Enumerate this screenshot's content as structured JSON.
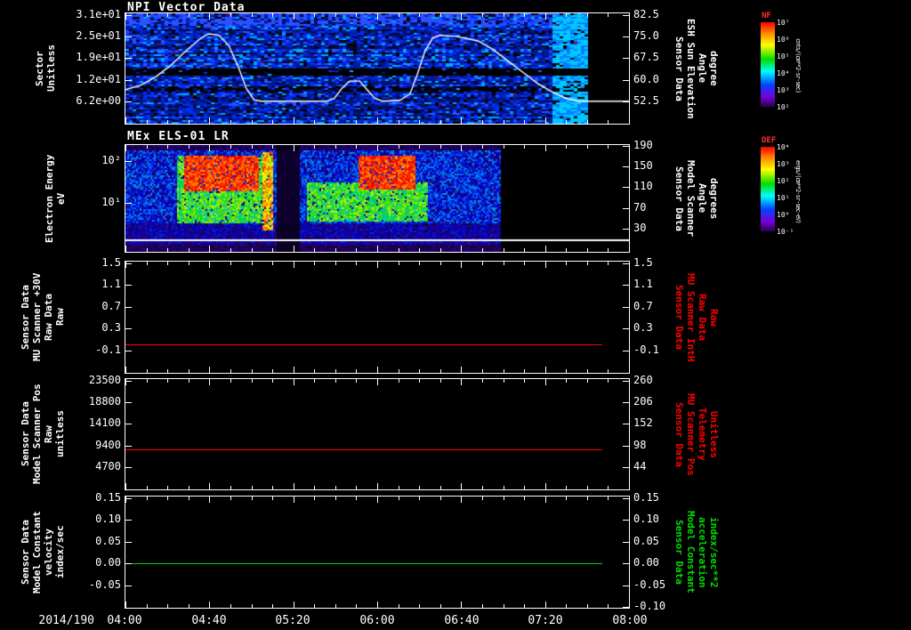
{
  "x_axis": {
    "date_label": "2014/190",
    "tick_labels": [
      "04:00",
      "04:40",
      "05:20",
      "06:00",
      "06:40",
      "07:20",
      "08:00"
    ],
    "time_range": [
      "2014/190 04:00",
      "2014/190 08:00"
    ]
  },
  "chart_data": [
    {
      "type": "heatmap",
      "title": "NPI Vector Data",
      "ylabel_lines": [
        "Sector",
        "Unitless"
      ],
      "yticks_left": [
        "3.1e+01",
        "2.5e+01",
        "1.9e+01",
        "1.2e+01",
        "6.2e+00"
      ],
      "yticks_right": [
        "82.5",
        "75.0",
        "67.5",
        "60.0",
        "52.5"
      ],
      "right_label_lines": [
        "Sensor Data",
        "ESH Sun Elevation",
        "Angle",
        "degree"
      ],
      "right_label_color": "#ffffff",
      "colorbar": {
        "title": "NF",
        "ticks": [
          "10⁷",
          "10⁶",
          "10⁵",
          "10⁴",
          "10³",
          "10²"
        ],
        "units": "cnts/(cm**2-sr-sec)"
      },
      "overlay_line": {
        "name": "ESH Sun Elevation Angle (degree)",
        "color": "#ffffff",
        "points": [
          [
            0,
            56.5
          ],
          [
            0.03,
            58
          ],
          [
            0.06,
            61
          ],
          [
            0.09,
            65
          ],
          [
            0.12,
            70
          ],
          [
            0.15,
            74.5
          ],
          [
            0.165,
            76
          ],
          [
            0.185,
            75.5
          ],
          [
            0.205,
            72
          ],
          [
            0.225,
            64
          ],
          [
            0.24,
            57
          ],
          [
            0.255,
            53
          ],
          [
            0.27,
            52.5
          ],
          [
            0.4,
            52.5
          ],
          [
            0.415,
            53.5
          ],
          [
            0.43,
            57
          ],
          [
            0.445,
            59.5
          ],
          [
            0.465,
            59.5
          ],
          [
            0.48,
            56.5
          ],
          [
            0.495,
            53.5
          ],
          [
            0.51,
            52.5
          ],
          [
            0.545,
            52.8
          ],
          [
            0.565,
            55
          ],
          [
            0.58,
            62
          ],
          [
            0.595,
            70
          ],
          [
            0.61,
            74.5
          ],
          [
            0.625,
            75.5
          ],
          [
            0.66,
            75
          ],
          [
            0.7,
            73.5
          ],
          [
            0.73,
            70.5
          ],
          [
            0.76,
            66.5
          ],
          [
            0.79,
            62.5
          ],
          [
            0.82,
            58.5
          ],
          [
            0.85,
            55.5
          ],
          [
            0.875,
            53.5
          ],
          [
            0.9,
            52.5
          ],
          [
            1,
            52.5
          ]
        ]
      },
      "heatmap_features": {
        "data_end_frac": 0.915,
        "black_bands": [
          [
            0.484,
            0.563,
            0.92
          ],
          [
            0.659,
            0.706,
            0.55
          ]
        ],
        "bright_top": [
          0,
          0.1
        ],
        "bright_column": [
          0.845,
          0.912
        ]
      }
    },
    {
      "type": "heatmap",
      "title": "MEx ELS-01 LR",
      "ylabel_lines": [
        "Electron Energy",
        "eV"
      ],
      "yticks_left": [
        "10²",
        "10¹"
      ],
      "yticks_right": [
        "190",
        "150",
        "110",
        "70",
        "30"
      ],
      "right_label_lines": [
        "Sensor Data",
        "Model Scanner",
        "Angle",
        "degrees"
      ],
      "right_label_color": "#ffffff",
      "colorbar": {
        "title": "DEF",
        "ticks": [
          "10⁴",
          "10³",
          "10²",
          "10¹",
          "10⁰",
          "10⁻¹"
        ],
        "units": "ergs/(cm**2-sr-sec-eV)"
      },
      "heatmap_features": {
        "data_end_frac": 0.743,
        "hot_regions": [
          {
            "x": [
              0.115,
              0.265
            ],
            "y": [
              0.1,
              0.42
            ]
          },
          {
            "x": [
              0.46,
              0.575
            ],
            "y": [
              0.1,
              0.4
            ]
          }
        ],
        "warm_regions": [
          {
            "x": [
              0.1,
              0.28
            ],
            "y": [
              0.1,
              0.72
            ]
          },
          {
            "x": [
              0.36,
              0.6
            ],
            "y": [
              0.35,
              0.7
            ]
          }
        ],
        "streaks": [
          {
            "x": [
              0.272,
              0.292
            ],
            "strength": 0.62
          }
        ],
        "gap_x": [
          0.298,
          0.345
        ],
        "white_line_y": 0.885
      }
    },
    {
      "type": "line",
      "ylabel_lines": [
        "Sensor Data",
        "MU Scanner +30V",
        "Raw Data",
        "Raw"
      ],
      "yticks_left": [
        "1.5",
        "1.1",
        "0.7",
        "0.3",
        "-0.1"
      ],
      "yticks_right": [
        "1.5",
        "1.1",
        "0.7",
        "0.3",
        "-0.1"
      ],
      "right_label_lines": [
        "Sensor Data",
        "MU Scanner IntH",
        "Raw Data",
        "Raw"
      ],
      "right_label_color": "#ff0000",
      "series": [
        {
          "name": "MU Scanner +30V Raw Data",
          "color": "#ff0000",
          "constant_value": 0.0,
          "x_extent": [
            0,
            0.947
          ]
        }
      ]
    },
    {
      "type": "line",
      "ylabel_lines": [
        "Sensor Data",
        "Model Scanner Pos",
        "Raw",
        "unitless"
      ],
      "yticks_left": [
        "23500",
        "18800",
        "14100",
        "9400",
        "4700"
      ],
      "yticks_right": [
        "260",
        "206",
        "152",
        "98",
        "44"
      ],
      "right_label_lines": [
        "Sensor Data",
        "MU Scanner Pos",
        "Telemetry",
        "Unitless"
      ],
      "right_label_color": "#ff0000",
      "series": [
        {
          "name": "Model Scanner Pos Raw",
          "color": "#ff0000",
          "constant_value": 8500,
          "x_extent": [
            0,
            0.947
          ]
        }
      ]
    },
    {
      "type": "line",
      "ylabel_lines": [
        "Sensor Data",
        "Model Constant",
        "velocity",
        "index/sec"
      ],
      "yticks_left": [
        "0.15",
        "0.10",
        "0.05",
        "0.00",
        "-0.05"
      ],
      "yticks_right": [
        "0.15",
        "0.10",
        "0.05",
        "0.00",
        "-0.05",
        "-0.10"
      ],
      "right_label_lines": [
        "Sensor Data",
        "Model Constant",
        "acceleration",
        "index/sec**2"
      ],
      "right_label_color": "#00dd00",
      "series": [
        {
          "name": "Model Constant velocity",
          "color": "#00dd00",
          "constant_value": 0.0,
          "x_extent": [
            0,
            0.947
          ]
        }
      ]
    }
  ]
}
